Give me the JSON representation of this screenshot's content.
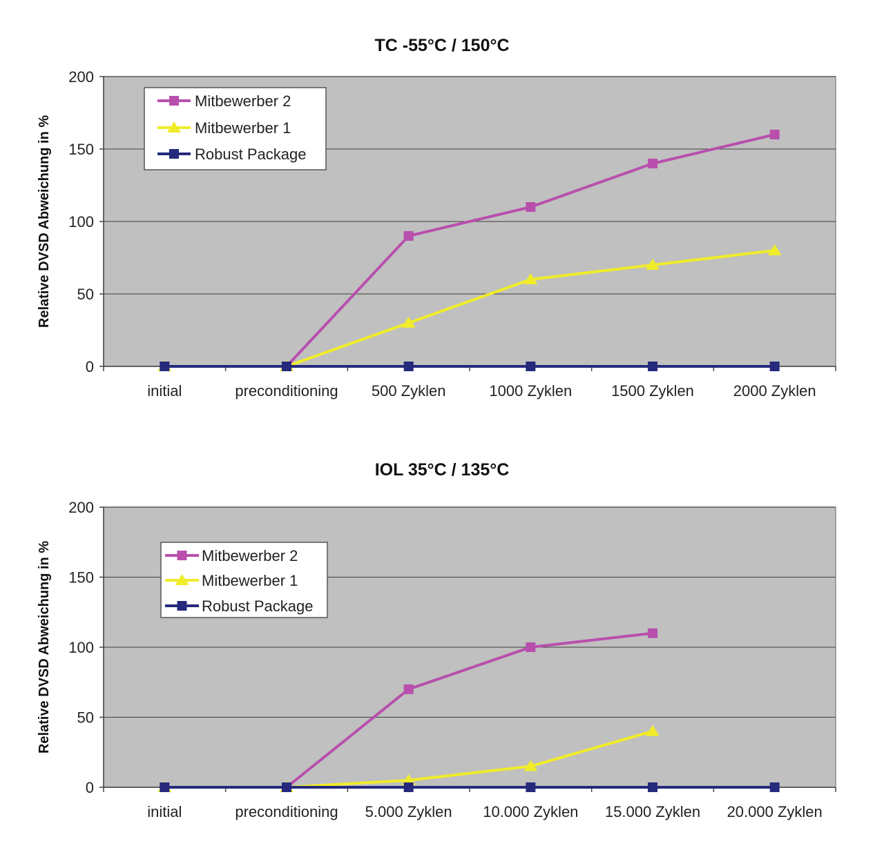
{
  "chart_data": [
    {
      "type": "line",
      "title": "TC -55°C / 150°C",
      "xlabel": "",
      "ylabel": "Relative DVSD Abweichung in %",
      "categories": [
        "initial",
        "preconditioning",
        "500 Zyklen",
        "1000 Zyklen",
        "1500 Zyklen",
        "2000 Zyklen"
      ],
      "ylim": [
        0,
        200
      ],
      "yticks": [
        0,
        50,
        100,
        150,
        200
      ],
      "grid": true,
      "legend": "top-left",
      "series": [
        {
          "name": "Mitbewerber 2",
          "color": "#b84fad",
          "marker": "square",
          "values": [
            0,
            0,
            90,
            110,
            140,
            160
          ]
        },
        {
          "name": "Mitbewerber 1",
          "color": "#f0ec2a",
          "marker": "triangle",
          "values": [
            0,
            0,
            30,
            60,
            70,
            80
          ]
        },
        {
          "name": "Robust Package",
          "color": "#252a7d",
          "marker": "square",
          "values": [
            0,
            0,
            0,
            0,
            0,
            0
          ]
        }
      ]
    },
    {
      "type": "line",
      "title": "IOL 35°C / 135°C",
      "xlabel": "",
      "ylabel": "Relative DVSD Abweichung in %",
      "categories": [
        "initial",
        "preconditioning",
        "5.000 Zyklen",
        "10.000 Zyklen",
        "15.000 Zyklen",
        "20.000 Zyklen"
      ],
      "ylim": [
        0,
        200
      ],
      "yticks": [
        0,
        50,
        100,
        150,
        200
      ],
      "grid": true,
      "legend": "top-left",
      "series": [
        {
          "name": "Mitbewerber 2",
          "color": "#b84fad",
          "marker": "square",
          "values": [
            0,
            0,
            70,
            100,
            110,
            null
          ]
        },
        {
          "name": "Mitbewerber 1",
          "color": "#f0ec2a",
          "marker": "triangle",
          "values": [
            0,
            0,
            5,
            15,
            40,
            null
          ]
        },
        {
          "name": "Robust Package",
          "color": "#252a7d",
          "marker": "square",
          "values": [
            0,
            0,
            0,
            0,
            0,
            0
          ]
        }
      ]
    }
  ]
}
